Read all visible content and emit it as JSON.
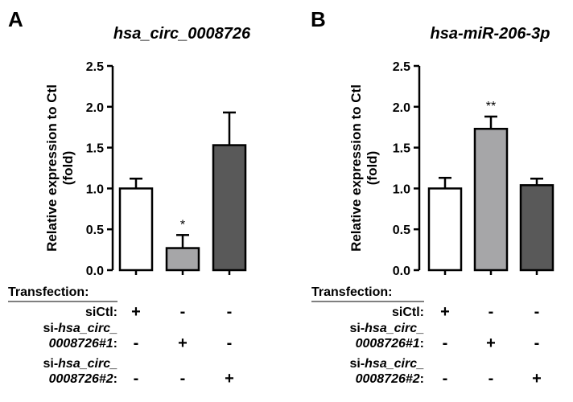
{
  "chart_data": [
    {
      "type": "bar",
      "panel_label": "A",
      "title": "hsa_circ_0008726",
      "ylabel": [
        "Relative expression to Ctl",
        "(fold)"
      ],
      "ylim": [
        0,
        2.5
      ],
      "yticks": [
        "0.0",
        "0.5",
        "1.0",
        "1.5",
        "2.0",
        "2.5"
      ],
      "values": [
        1.0,
        0.27,
        1.53
      ],
      "errors": [
        0.12,
        0.16,
        0.4
      ],
      "bar_colors": [
        "#ffffff",
        "#a6a6a8",
        "#595959"
      ],
      "significance": [
        "",
        "*",
        ""
      ],
      "transfection": {
        "header": "Transfection:",
        "rows": [
          {
            "label": "siCtl:",
            "signs": [
              "+",
              "-",
              "-"
            ]
          },
          {
            "label_plain": "si-",
            "label_ital": "hsa_circ_",
            "label2_ital": "0008726#1",
            "label2_tail": ":",
            "signs": [
              "-",
              "+",
              "-"
            ]
          },
          {
            "label_plain": "si-",
            "label_ital": "hsa_circ_",
            "label2_ital": "0008726#2",
            "label2_tail": ":",
            "signs": [
              "-",
              "-",
              "+"
            ]
          }
        ]
      }
    },
    {
      "type": "bar",
      "panel_label": "B",
      "title": "hsa-miR-206-3p",
      "ylabel": [
        "Relative expression to Ctl",
        "(fold)"
      ],
      "ylim": [
        0,
        2.5
      ],
      "yticks": [
        "0.0",
        "0.5",
        "1.0",
        "1.5",
        "2.0",
        "2.5"
      ],
      "values": [
        1.0,
        1.73,
        1.04
      ],
      "errors": [
        0.13,
        0.15,
        0.08
      ],
      "bar_colors": [
        "#ffffff",
        "#a6a6a8",
        "#595959"
      ],
      "significance": [
        "",
        "**",
        ""
      ],
      "transfection": {
        "header": "Transfection:",
        "rows": [
          {
            "label": "siCtl:",
            "signs": [
              "+",
              "-",
              "-"
            ]
          },
          {
            "label_plain": "si-",
            "label_ital": "hsa_circ_",
            "label2_ital": "0008726#1",
            "label2_tail": ":",
            "signs": [
              "-",
              "+",
              "-"
            ]
          },
          {
            "label_plain": "si-",
            "label_ital": "hsa_circ_",
            "label2_ital": "0008726#2",
            "label2_tail": ":",
            "signs": [
              "-",
              "-",
              "+"
            ]
          }
        ]
      }
    }
  ]
}
